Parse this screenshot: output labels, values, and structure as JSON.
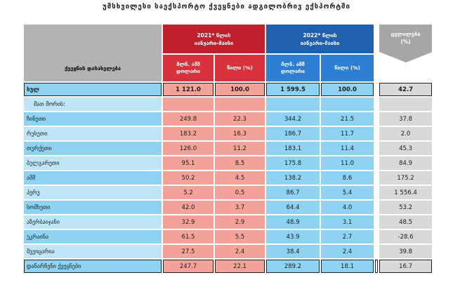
{
  "title": "უმსხვილესი საექსპორტო ქვეყნები ადგილობრივ ექსპორტში",
  "header": {
    "country_group": "ქვეყნის დასახელება",
    "col2021": {
      "line1": "2021* წლის",
      "line2": "იანვარი-მაისი"
    },
    "col2022": {
      "line1": "2022* წლის",
      "line2": "იანვარი-მაისი"
    },
    "change": {
      "line1": "ცვლილება",
      "line2": "(%)"
    },
    "usd_line1": "მლნ. აშშ",
    "usd_line2": "დოლარი",
    "share": "წილი (%)"
  },
  "total": {
    "name": "სულ",
    "v2021": "1 121.0",
    "s2021": "100.0",
    "v2022": "1 599.5",
    "s2022": "100.0",
    "change": "42.7"
  },
  "including_label": "მათ შორის:",
  "rows": [
    {
      "name": "ჩინეთი",
      "v2021": "249.8",
      "s2021": "22.3",
      "v2022": "344.2",
      "s2022": "21.5",
      "change": "37.8"
    },
    {
      "name": "რუსეთი",
      "v2021": "183.2",
      "s2021": "16.3",
      "v2022": "186.7",
      "s2022": "11.7",
      "change": "2.0"
    },
    {
      "name": "თურქეთი",
      "v2021": "126.0",
      "s2021": "11.2",
      "v2022": "183.1",
      "s2022": "11.4",
      "change": "45.3"
    },
    {
      "name": "ბულგარეთი",
      "v2021": "95.1",
      "s2021": "8.5",
      "v2022": "175.8",
      "s2022": "11.0",
      "change": "84.9"
    },
    {
      "name": "აშშ",
      "v2021": "50.2",
      "s2021": "4.5",
      "v2022": "138.2",
      "s2022": "8.6",
      "change": "175.2"
    },
    {
      "name": "პერუ",
      "v2021": "5.2",
      "s2021": "0.5",
      "v2022": "86.7",
      "s2022": "5.4",
      "change": "1 556.4"
    },
    {
      "name": "სომხეთი",
      "v2021": "42.0",
      "s2021": "3.7",
      "v2022": "64.4",
      "s2022": "4.0",
      "change": "53.2"
    },
    {
      "name": "აზერბაიჯანი",
      "v2021": "32.9",
      "s2021": "2.9",
      "v2022": "48.9",
      "s2022": "3.1",
      "change": "48.5"
    },
    {
      "name": "უკრაინა",
      "v2021": "61.5",
      "s2021": "5.5",
      "v2022": "43.9",
      "s2022": "2.7",
      "change": "-28.6"
    },
    {
      "name": "შვეიცარია",
      "v2021": "27.5",
      "s2021": "2.4",
      "v2022": "38.4",
      "s2022": "2.4",
      "change": "39.8"
    },
    {
      "name": "დანარჩენი ქვეყნები",
      "v2021": "247.7",
      "s2021": "22.1",
      "v2022": "289.2",
      "s2022": "18.1",
      "change": "16.7"
    }
  ]
}
